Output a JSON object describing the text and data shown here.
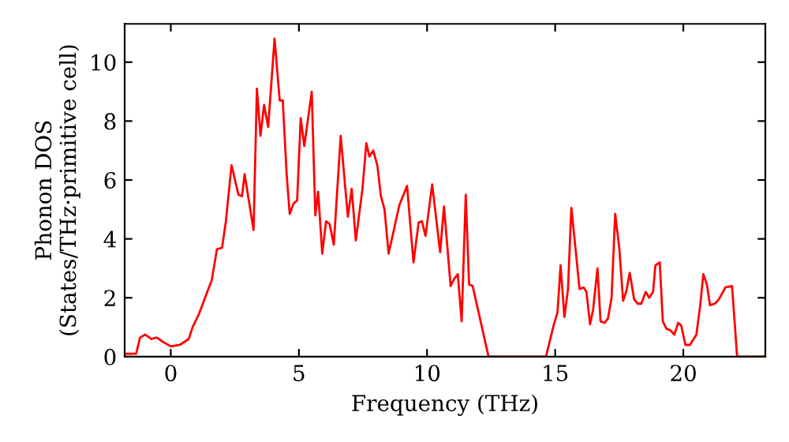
{
  "chart_data": {
    "type": "line",
    "xlabel": "Frequency (THz)",
    "ylabel": "Phonon DOS\n(States/THz·primitive cell)",
    "xlim": [
      -1.8,
      23.2
    ],
    "ylim": [
      0,
      11.3
    ],
    "xticks": [
      0,
      5,
      10,
      15,
      20
    ],
    "yticks": [
      0,
      2,
      4,
      6,
      8,
      10
    ],
    "grid": false,
    "legend": false,
    "marker": "none",
    "line_style": "solid",
    "series": [
      {
        "color": "#ff0000",
        "x": [
          -1.8,
          -1.35,
          -1.2,
          -1.0,
          -0.75,
          -0.55,
          -0.3,
          0,
          0.35,
          0.7,
          0.85,
          1.1,
          1.4,
          1.6,
          1.8,
          2.0,
          2.15,
          2.37,
          2.64,
          2.78,
          2.88,
          3.23,
          3.36,
          3.5,
          3.64,
          3.8,
          4.05,
          4.25,
          4.37,
          4.52,
          4.64,
          4.79,
          4.93,
          5.07,
          5.21,
          5.5,
          5.64,
          5.75,
          5.91,
          6.06,
          6.2,
          6.36,
          6.63,
          6.91,
          7.06,
          7.22,
          7.48,
          7.63,
          7.75,
          7.9,
          8.06,
          8.2,
          8.34,
          8.5,
          8.92,
          9.22,
          9.47,
          9.67,
          9.8,
          9.94,
          10.2,
          10.51,
          10.66,
          10.92,
          11.06,
          11.2,
          11.35,
          11.51,
          11.64,
          11.78,
          12.4,
          14.64,
          14.95,
          15.09,
          15.21,
          15.36,
          15.5,
          15.63,
          15.79,
          15.95,
          16.11,
          16.22,
          16.36,
          16.48,
          16.65,
          16.77,
          16.93,
          17.06,
          17.2,
          17.34,
          17.5,
          17.65,
          17.77,
          17.91,
          18.08,
          18.22,
          18.36,
          18.53,
          18.67,
          18.82,
          18.91,
          19.08,
          19.2,
          19.34,
          19.49,
          19.65,
          19.8,
          19.92,
          20.08,
          20.26,
          20.51,
          20.66,
          20.78,
          20.92,
          21.04,
          21.23,
          21.39,
          21.64,
          21.9,
          22.1,
          23.2
        ],
        "values": [
          0.1,
          0.1,
          0.65,
          0.75,
          0.6,
          0.65,
          0.5,
          0.35,
          0.4,
          0.6,
          1.0,
          1.45,
          2.15,
          2.6,
          3.65,
          3.7,
          4.6,
          6.5,
          5.5,
          5.45,
          6.2,
          4.3,
          9.1,
          7.5,
          8.55,
          7.8,
          10.8,
          8.7,
          8.7,
          6.2,
          4.85,
          5.2,
          5.3,
          8.1,
          7.15,
          9.0,
          4.8,
          5.6,
          3.5,
          4.6,
          4.5,
          3.8,
          7.5,
          4.75,
          5.7,
          3.95,
          5.7,
          7.25,
          6.8,
          7.0,
          6.5,
          5.45,
          5.0,
          3.5,
          5.15,
          5.8,
          3.2,
          4.55,
          4.6,
          4.1,
          5.85,
          3.55,
          5.1,
          2.4,
          2.65,
          2.8,
          1.2,
          5.5,
          2.45,
          2.4,
          0,
          0,
          1.1,
          1.5,
          3.1,
          1.35,
          2.3,
          5.05,
          3.7,
          2.3,
          2.35,
          2.2,
          1.1,
          1.6,
          3.0,
          1.2,
          1.15,
          1.3,
          2.0,
          4.85,
          3.7,
          1.9,
          2.2,
          2.85,
          1.95,
          1.8,
          1.8,
          2.2,
          2.0,
          2.2,
          3.1,
          3.2,
          1.2,
          0.95,
          0.9,
          0.75,
          1.15,
          1.05,
          0.4,
          0.4,
          0.75,
          1.75,
          2.8,
          2.45,
          1.75,
          1.8,
          1.95,
          2.35,
          2.4,
          0,
          0
        ]
      }
    ]
  }
}
